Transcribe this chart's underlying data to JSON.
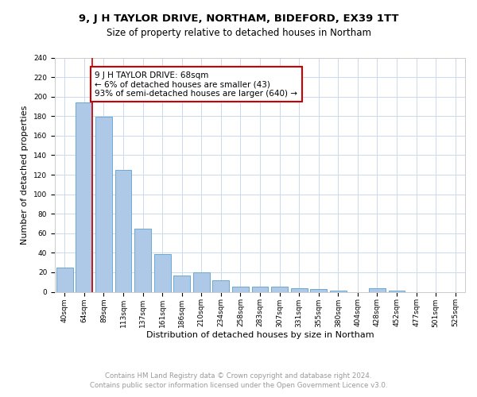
{
  "title": "9, J H TAYLOR DRIVE, NORTHAM, BIDEFORD, EX39 1TT",
  "subtitle": "Size of property relative to detached houses in Northam",
  "xlabel": "Distribution of detached houses by size in Northam",
  "ylabel": "Number of detached properties",
  "bar_labels": [
    "40sqm",
    "64sqm",
    "89sqm",
    "113sqm",
    "137sqm",
    "161sqm",
    "186sqm",
    "210sqm",
    "234sqm",
    "258sqm",
    "283sqm",
    "307sqm",
    "331sqm",
    "355sqm",
    "380sqm",
    "404sqm",
    "428sqm",
    "452sqm",
    "477sqm",
    "501sqm",
    "525sqm"
  ],
  "bar_values": [
    25,
    194,
    179,
    125,
    65,
    39,
    17,
    20,
    12,
    5,
    5,
    5,
    4,
    3,
    1,
    0,
    4,
    1,
    0,
    0,
    0
  ],
  "bar_color": "#aec9e8",
  "bar_edge_color": "#6aaad4",
  "vline_color": "#cc0000",
  "annotation_text": "9 J H TAYLOR DRIVE: 68sqm\n← 6% of detached houses are smaller (43)\n93% of semi-detached houses are larger (640) →",
  "annotation_box_color": "#ffffff",
  "annotation_box_edge": "#cc0000",
  "ylim": [
    0,
    240
  ],
  "yticks": [
    0,
    20,
    40,
    60,
    80,
    100,
    120,
    140,
    160,
    180,
    200,
    220,
    240
  ],
  "grid_color": "#ccd8ec",
  "footer_line1": "Contains HM Land Registry data © Crown copyright and database right 2024.",
  "footer_line2": "Contains public sector information licensed under the Open Government Licence v3.0.",
  "title_fontsize": 9.5,
  "subtitle_fontsize": 8.5,
  "xlabel_fontsize": 8,
  "ylabel_fontsize": 8,
  "tick_fontsize": 6.5,
  "annotation_fontsize": 7.5,
  "footer_fontsize": 6.2
}
